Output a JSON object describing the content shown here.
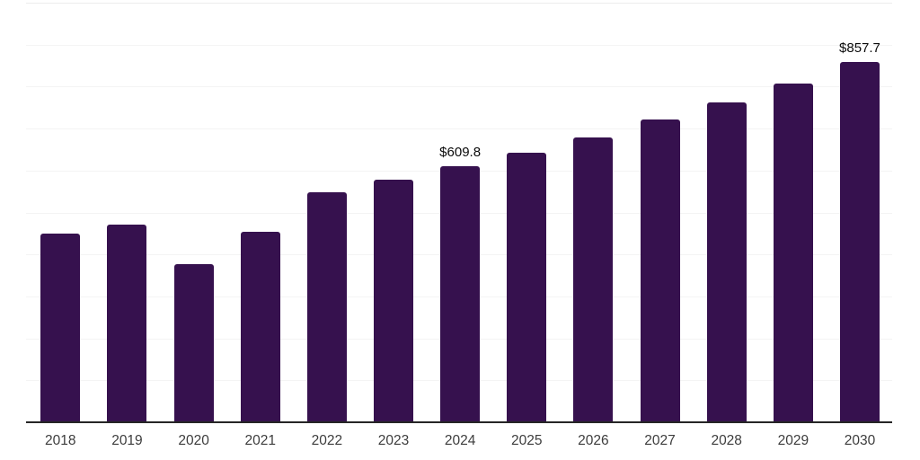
{
  "chart_data": {
    "type": "bar",
    "title": "",
    "xlabel": "",
    "ylabel": "",
    "categories": [
      "2018",
      "2019",
      "2020",
      "2021",
      "2022",
      "2023",
      "2024",
      "2025",
      "2026",
      "2027",
      "2028",
      "2029",
      "2030"
    ],
    "values": [
      448.9,
      470.1,
      376.6,
      454.8,
      548.3,
      577.2,
      609.8,
      643.4,
      679.1,
      720.9,
      762.2,
      806.9,
      857.7
    ],
    "data_labels": {
      "2024": "$609.8",
      "2030": "$857.7"
    },
    "ylim": [
      0,
      1000
    ],
    "gridline_step": 100,
    "grid_on": true,
    "legend_position": "none",
    "colors": {
      "bar": "#36114E",
      "gridline": "#F4F4F4",
      "top_gridline": "#ECECEC",
      "axis_line": "#262626",
      "tick_label": "#3D3D3D",
      "value_label": "#0A0A0A",
      "background": "#FFFFFF"
    }
  }
}
